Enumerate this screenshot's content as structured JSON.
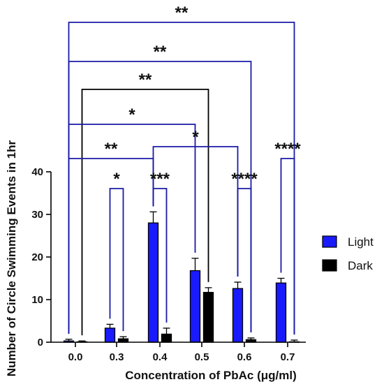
{
  "chart_data": {
    "type": "bar",
    "title": "",
    "xlabel": "Concentration of PbAc (μg/ml)",
    "ylabel": "Number of Circle Swimming Events in 1hr",
    "categories": [
      "0.0",
      "0.3",
      "0.4",
      "0.5",
      "0.6",
      "0.7"
    ],
    "ylim": [
      0,
      40
    ],
    "yticks": [
      "0",
      "10",
      "20",
      "30",
      "40"
    ],
    "grid": false,
    "legend_position": "right",
    "series": [
      {
        "name": "Light",
        "color": "#1a1aff",
        "values": [
          0.3,
          3.3,
          28.0,
          16.8,
          12.6,
          13.9
        ],
        "errors": [
          0.4,
          0.9,
          2.6,
          2.9,
          1.5,
          1.1
        ]
      },
      {
        "name": "Dark",
        "color": "#000000",
        "values": [
          0.1,
          0.8,
          1.9,
          11.7,
          0.6,
          0.1
        ],
        "errors": [
          0.2,
          0.5,
          1.4,
          1.1,
          0.4,
          0.4
        ]
      }
    ],
    "significance": [
      {
        "from_group": 0,
        "from_series": 0,
        "to_group": 5,
        "to_series": 1,
        "label": "**",
        "color": "#1a1aa8"
      },
      {
        "from_group": 0,
        "from_series": 0,
        "to_group": 4,
        "to_series": 1,
        "label": "**",
        "color": "#1a1aa8"
      },
      {
        "from_group": 0,
        "from_series": 1,
        "to_group": 3,
        "to_series": 1,
        "label": "**",
        "color": "#000000"
      },
      {
        "from_group": 0,
        "from_series": 0,
        "to_group": 3,
        "to_series": 0,
        "label": "*",
        "color": "#1a1aa8"
      },
      {
        "from_group": 0,
        "from_series": 0,
        "to_group": 2,
        "to_series": 0,
        "label": "**",
        "color": "#1a1aa8"
      },
      {
        "from_group": 2,
        "from_series": 0,
        "to_group": 4,
        "to_series": 0,
        "label": "*",
        "color": "#1a1aa8"
      },
      {
        "from_group": 1,
        "from_series": 0,
        "to_group": 1,
        "to_series": 1,
        "label": "*",
        "color": "#1a1aa8"
      },
      {
        "from_group": 2,
        "from_series": 0,
        "to_group": 2,
        "to_series": 1,
        "label": "***",
        "color": "#1a1aa8"
      },
      {
        "from_group": 4,
        "from_series": 0,
        "to_group": 4,
        "to_series": 1,
        "label": "****",
        "color": "#1a1aa8"
      },
      {
        "from_group": 5,
        "from_series": 0,
        "to_group": 5,
        "to_series": 1,
        "label": "****",
        "color": "#1a1aa8"
      }
    ]
  }
}
